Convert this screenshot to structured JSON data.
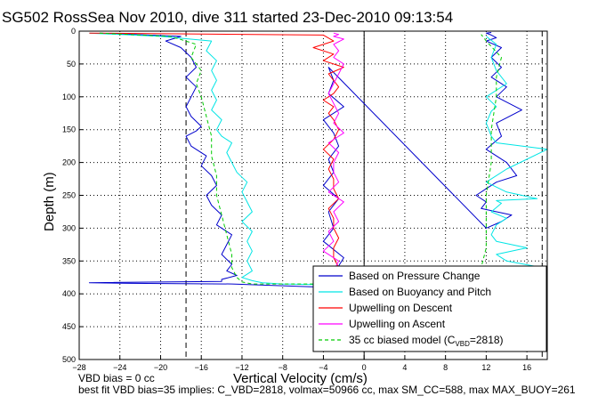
{
  "chart_data": {
    "type": "line",
    "title": "SG502 RossSea Nov 2010, dive 311 started 23-Dec-2010 09:13:54",
    "xlabel": "Vertical Velocity (cm/s)",
    "ylabel": "Depth (m)",
    "xlim": [
      -28,
      18
    ],
    "ylim": [
      0,
      500
    ],
    "y_reversed": true,
    "xticks": [
      -28,
      -24,
      -20,
      -16,
      -12,
      -8,
      -4,
      0,
      4,
      8,
      12,
      16
    ],
    "yticks": [
      0,
      50,
      100,
      150,
      200,
      250,
      300,
      350,
      400,
      450,
      500
    ],
    "grid": true,
    "legend_position": "bottom-right",
    "reference_lines": [
      -17.5,
      17.5,
      0
    ],
    "series": [
      {
        "name": "Based on Pressure Change",
        "color": "#0000cc",
        "style": "solid",
        "x": [
          -26,
          -18,
          -19.5,
          -18,
          -17,
          -16.5,
          -17.5,
          -16.5,
          -17,
          -17.5,
          -17,
          -16,
          -16.5,
          -17.5,
          -17,
          -15.5,
          -16,
          -15,
          -14.5,
          -15.5,
          -15,
          -14,
          -14.5,
          -13,
          -13.5,
          -14,
          -13,
          -13.5,
          -12.5,
          -14,
          -14,
          -27,
          -23,
          -13,
          -4,
          -3,
          -2,
          -4,
          -3,
          -3.5,
          -2.5,
          -4,
          -3,
          -3.5,
          -2.5,
          -3,
          -4,
          -2,
          -3.5,
          -3,
          -3.5,
          12,
          13.5,
          14.5,
          11.5,
          12,
          11,
          12,
          13,
          15,
          14,
          12,
          13.5,
          13,
          15.5,
          13,
          14,
          12.5,
          13.5,
          12.5,
          13.5,
          12,
          13,
          12.5,
          12,
          12.5
        ],
        "y": [
          3,
          8,
          15,
          25,
          40,
          55,
          70,
          85,
          100,
          115,
          130,
          145,
          152,
          160,
          175,
          190,
          205,
          220,
          235,
          250,
          265,
          280,
          295,
          310,
          325,
          340,
          355,
          365,
          372,
          378,
          381,
          383,
          384,
          385,
          390,
          370,
          345,
          320,
          300,
          275,
          255,
          235,
          215,
          195,
          175,
          155,
          135,
          115,
          95,
          75,
          55,
          300,
          290,
          280,
          270,
          260,
          250,
          240,
          230,
          220,
          200,
          180,
          160,
          140,
          120,
          100,
          85,
          70,
          55,
          40,
          25,
          15,
          10,
          6,
          3,
          2
        ]
      },
      {
        "name": "Based on Buoyancy and Pitch",
        "color": "#00e5e5",
        "style": "solid",
        "x": [
          -27,
          -20,
          -15,
          -15.5,
          -14.5,
          -15,
          -14.5,
          -15,
          -14.5,
          -15,
          -14,
          -14.5,
          -14,
          -13,
          -13.5,
          -13,
          -12.5,
          -11.5,
          -12,
          -11.5,
          -11,
          -12,
          -11,
          -11.5,
          -11,
          -11.5,
          -11,
          -12,
          -11,
          -10,
          -8,
          -4.5,
          12,
          13,
          17.5,
          14,
          13,
          16,
          13,
          12.5,
          13,
          14,
          12.5,
          13.5,
          13,
          17,
          14,
          12,
          14,
          18,
          13,
          12.5,
          12,
          12.5,
          13,
          12,
          14,
          13,
          12.5,
          13,
          12
        ],
        "y": [
          3,
          8,
          15,
          30,
          45,
          60,
          75,
          90,
          105,
          120,
          135,
          150,
          160,
          170,
          185,
          200,
          215,
          230,
          245,
          260,
          275,
          290,
          305,
          320,
          335,
          350,
          365,
          375,
          380,
          383,
          385,
          386,
          380,
          370,
          360,
          350,
          340,
          330,
          320,
          310,
          295,
          285,
          275,
          262,
          258,
          255,
          245,
          230,
          210,
          180,
          170,
          160,
          140,
          122,
          115,
          100,
          80,
          60,
          40,
          20,
          8
        ]
      },
      {
        "name": "Upwelling on Descent",
        "color": "#ff0000",
        "style": "solid",
        "x": [
          -27,
          -4,
          -3,
          -5,
          -3,
          -4,
          -2,
          -3.5,
          -3,
          -2.5,
          -3,
          -4,
          -3,
          -3.5,
          -3,
          -2.5,
          -3,
          -4,
          -3,
          -3.5,
          -3,
          -3,
          -2.5,
          -3.5,
          -3,
          -3,
          -2.5,
          -3,
          -3,
          -2.5,
          -3
        ],
        "y": [
          3,
          6,
          15,
          25,
          35,
          45,
          55,
          65,
          75,
          85,
          95,
          105,
          115,
          125,
          135,
          150,
          165,
          180,
          195,
          210,
          225,
          240,
          255,
          270,
          285,
          300,
          315,
          330,
          345,
          360,
          380
        ]
      },
      {
        "name": "Upwelling on Ascent",
        "color": "#ff00ff",
        "style": "solid",
        "x": [
          -4,
          -3,
          -2.5,
          -4,
          -3,
          -3.5,
          -2.5,
          -3,
          -2,
          -3.5,
          -2.5,
          -3,
          -3,
          -2.5,
          -3.5,
          -2,
          -3,
          -2.5,
          -3,
          -3.5,
          -3,
          -2.5,
          -2,
          -3,
          -2.5,
          -3,
          -2,
          -3,
          -2.5,
          -3
        ],
        "y": [
          380,
          365,
          350,
          335,
          320,
          305,
          290,
          275,
          260,
          245,
          230,
          215,
          200,
          185,
          170,
          155,
          140,
          125,
          110,
          95,
          80,
          65,
          50,
          40,
          30,
          20,
          12,
          8,
          5,
          3
        ]
      },
      {
        "name": "35 cc biased model (C_VBD=2818)",
        "color": "#00cc00",
        "style": "dashed",
        "x": [
          -26,
          -19,
          -16.5,
          -17,
          -16,
          -16.5,
          -16,
          -15.5,
          -15,
          -15,
          -14.5,
          -14.5,
          -14,
          -13.5,
          -13,
          -13,
          -12.5,
          -12,
          -11,
          11,
          11.5,
          12,
          12,
          12,
          12.5,
          12.5,
          13,
          13,
          13.5,
          12,
          11.5
        ],
        "y": [
          3,
          8,
          20,
          40,
          60,
          80,
          100,
          130,
          160,
          190,
          220,
          250,
          280,
          310,
          340,
          360,
          375,
          382,
          385,
          385,
          360,
          330,
          290,
          250,
          200,
          150,
          100,
          70,
          40,
          15,
          5
        ]
      }
    ]
  },
  "legend": {
    "item1": "Based on Pressure Change",
    "item2": "Based on Buoyancy and Pitch",
    "item3": "Upwelling on Descent",
    "item4": "Upwelling on Ascent",
    "item5_main": "35 cc biased model (C",
    "item5_sub": "VBD",
    "item5_tail": "=2818)"
  },
  "notes": {
    "bias": "VBD bias = 0 cc",
    "best_fit": "best fit VBD bias=35 implies: C_VBD=2818, volmax=50966 cc, max SM_CC=588, max MAX_BUOY=261"
  }
}
